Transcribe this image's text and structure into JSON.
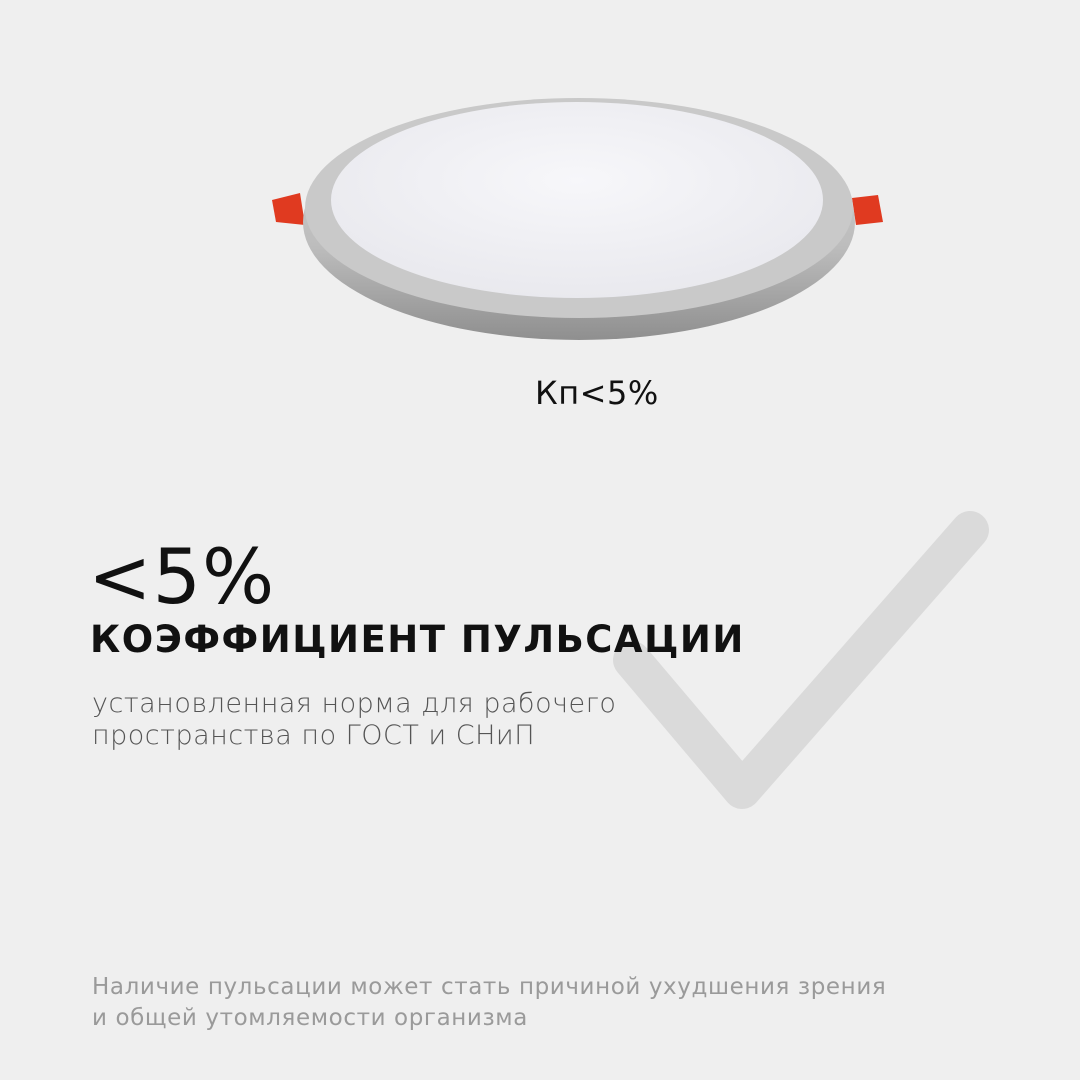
{
  "product": {
    "label": "Кп<5%"
  },
  "headline": {
    "value": "<5%",
    "title": "КОЭФФИЦИЕНТ ПУЛЬСАЦИИ"
  },
  "description": {
    "line1": "установленная норма для рабочего",
    "line2": "пространства по ГОСТ и СНиП"
  },
  "note": {
    "line1": "Наличие пульсации может стать причиной ухудшения зрения",
    "line2": "и общей утомляемости организма"
  },
  "colors": {
    "background": "#efefef",
    "clip": "#e03a20",
    "checkmark": "#d9d9d9"
  },
  "icons": {
    "decor": "checkmark-icon",
    "product": "led-panel-image"
  }
}
